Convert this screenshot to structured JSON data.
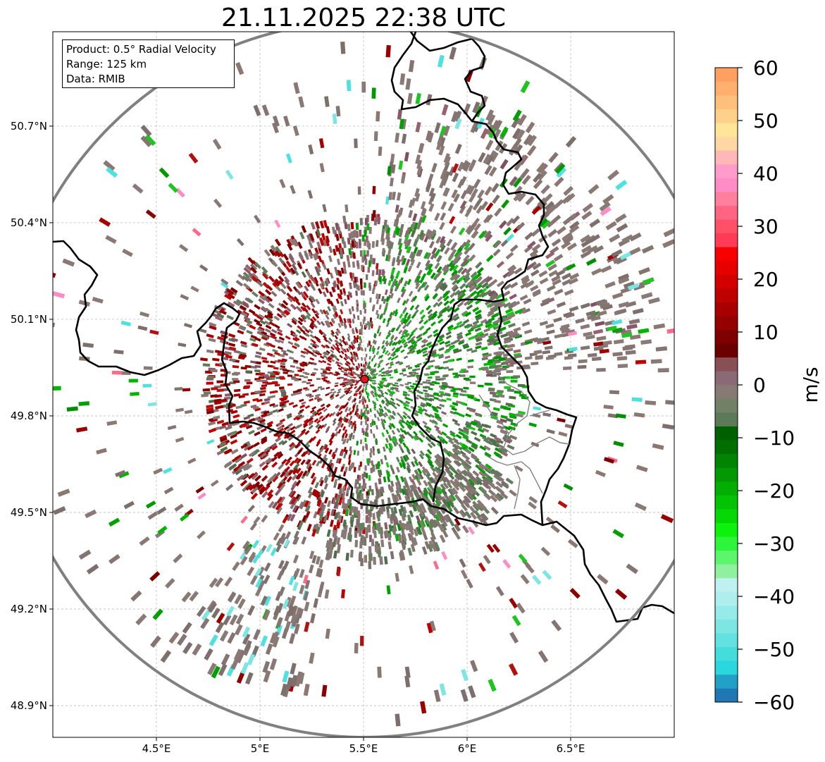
{
  "title": "21.11.2025 22:38 UTC",
  "info_box": {
    "product": "Product: 0.5° Radial Velocity",
    "range": "Range: 125 km",
    "data_source": "Data: RMIB"
  },
  "map": {
    "lon_range": [
      4.0,
      7.0
    ],
    "lat_range": [
      48.8,
      50.98
    ],
    "x_ticks": [
      {
        "value": 4.5,
        "label": "4.5°E"
      },
      {
        "value": 5.0,
        "label": "5°E"
      },
      {
        "value": 5.5,
        "label": "5.5°E"
      },
      {
        "value": 6.0,
        "label": "6°E"
      },
      {
        "value": 6.5,
        "label": "6.5°E"
      }
    ],
    "y_ticks": [
      {
        "value": 48.9,
        "label": "48.9°N"
      },
      {
        "value": 49.2,
        "label": "49.2°N"
      },
      {
        "value": 49.5,
        "label": "49.5°N"
      },
      {
        "value": 49.8,
        "label": "49.8°N"
      },
      {
        "value": 50.1,
        "label": "50.1°N"
      },
      {
        "value": 50.4,
        "label": "50.4°N"
      },
      {
        "value": 50.7,
        "label": "50.7°N"
      }
    ],
    "radar_site": {
      "lon": 5.505,
      "lat": 49.914,
      "color": "#e8141b"
    },
    "range_ring_color": "#808080",
    "grid": true
  },
  "colorbar": {
    "unit": "m/s",
    "min": -60,
    "max": 60,
    "ticks": [
      60,
      50,
      40,
      30,
      20,
      10,
      0,
      -10,
      -20,
      -30,
      -40,
      -50,
      -60
    ],
    "tick_labels": [
      "60",
      "50",
      "40",
      "30",
      "20",
      "10",
      "0",
      "−10",
      "−20",
      "−30",
      "−40",
      "−50",
      "−60"
    ],
    "colors": [
      "#1f78b4",
      "#23a0c8",
      "#2ad7dd",
      "#45dcdc",
      "#61e1df",
      "#7de6e3",
      "#96eaea",
      "#aeeeed",
      "#bff1f0",
      "#8ff0a0",
      "#5df56b",
      "#2ef53b",
      "#0df20d",
      "#06d806",
      "#04c304",
      "#03ae03",
      "#029902",
      "#018401",
      "#006f00",
      "#006000",
      "#5b7a58",
      "#728065",
      "#877a74",
      "#8a6a75",
      "#884f55",
      "#6a0000",
      "#7e0000",
      "#950000",
      "#a80000",
      "#bd0000",
      "#d30000",
      "#e70000",
      "#f70000",
      "#ff3b55",
      "#ff5068",
      "#ff6582",
      "#ff7f9c",
      "#ff8cc4",
      "#ff9ccc",
      "#ffb7b7",
      "#ffd7a3",
      "#ffe49a",
      "#ffd08a",
      "#ffc07b",
      "#ffb06e",
      "#ffa061"
    ]
  }
}
